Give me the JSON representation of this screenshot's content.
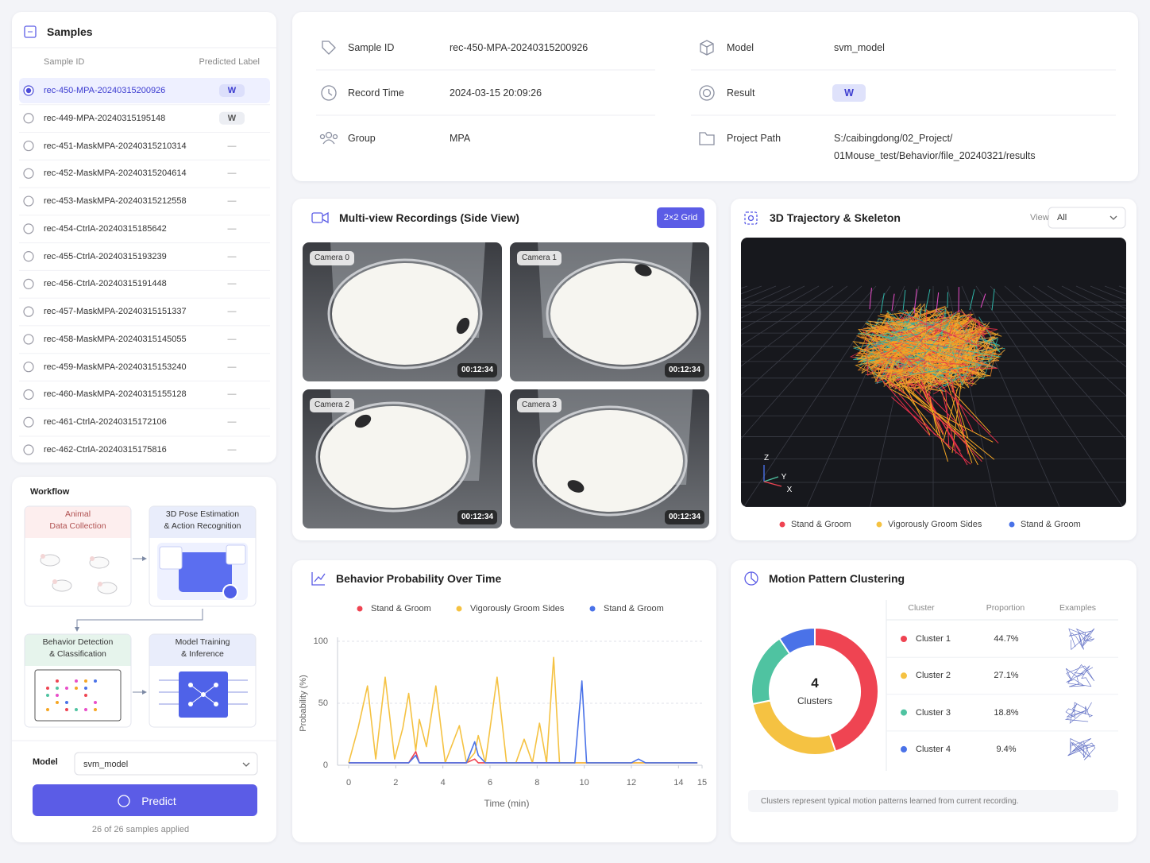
{
  "samples": {
    "title": "Samples",
    "columns": [
      "Sample ID",
      "Predicted Label"
    ],
    "rows": [
      {
        "id": "rec-450-MPA-20240315200926",
        "label": "W"
      },
      {
        "id": "rec-449-MPA-20240315195148",
        "label": "W"
      },
      {
        "id": "rec-451-MaskMPA-20240315210314",
        "label": "—"
      },
      {
        "id": "rec-452-MaskMPA-20240315204614",
        "label": "—"
      },
      {
        "id": "rec-453-MaskMPA-20240315212558",
        "label": "—"
      },
      {
        "id": "rec-454-CtrlA-20240315185642",
        "label": "—"
      },
      {
        "id": "rec-455-CtrlA-20240315193239",
        "label": "—"
      },
      {
        "id": "rec-456-CtrlA-20240315191448",
        "label": "—"
      },
      {
        "id": "rec-457-MaskMPA-20240315151337",
        "label": "—"
      },
      {
        "id": "rec-458-MaskMPA-20240315145055",
        "label": "—"
      },
      {
        "id": "rec-459-MaskMPA-20240315153240",
        "label": "—"
      },
      {
        "id": "rec-460-MaskMPA-20240315155128",
        "label": "—"
      },
      {
        "id": "rec-461-CtrlA-20240315172106",
        "label": "—"
      },
      {
        "id": "rec-462-CtrlA-20240315175816",
        "label": "—"
      }
    ]
  },
  "workflow": {
    "title": "Workflow",
    "steps": [
      "Animal\nData Collection",
      "3D Pose Estimation\n& Action Recognition",
      "Behavior Detection\n& Classification",
      "Model Training\n& Inference"
    ],
    "model_label": "Model",
    "model": "svm_model",
    "button": "Predict",
    "status": "26 of 26 samples applied"
  },
  "sample_info": {
    "fields": [
      {
        "label": "Sample ID",
        "value": "rec-450-MPA-20240315200926"
      },
      {
        "label": "Record Time",
        "value": "2024-03-15 20:09:26"
      },
      {
        "label": "Group",
        "value": "MPA"
      },
      {
        "label": "Model",
        "value": "svm_model"
      },
      {
        "label": "Result",
        "value": "W",
        "badge": true
      },
      {
        "label": "Project Path",
        "value": "S:/caibingdong/02_Project/\n01Mouse_test/Behavior/file_20240321/results"
      }
    ]
  },
  "recordings": {
    "title": "Multi-view Recordings (Side View)",
    "layout_button": "2×2 Grid",
    "cameras": [
      {
        "name": "Camera 0",
        "time": "00:12:34"
      },
      {
        "name": "Camera 1",
        "time": "00:12:34"
      },
      {
        "name": "Camera 2",
        "time": "00:12:34"
      },
      {
        "name": "Camera 3",
        "time": "00:12:34"
      }
    ]
  },
  "trajectory": {
    "title": "3D Trajectory & Skeleton",
    "view_label": "View",
    "view": "All",
    "axes": [
      "Z",
      "Y",
      "X"
    ],
    "legend": [
      {
        "name": "Stand & Groom",
        "color": "#ef4452"
      },
      {
        "name": "Vigorously Groom Sides",
        "color": "#f5c242"
      },
      {
        "name": "Stand & Groom",
        "color": "#4a72e8"
      }
    ]
  },
  "chart_data": [
    {
      "type": "line",
      "title": "Behavior Probability Over Time",
      "x_label": "Time (min)",
      "y_label": "Probability (%)",
      "x": [
        0,
        0.4,
        0.8,
        1.15,
        1.55,
        1.95,
        2.3,
        2.55,
        2.85,
        3.0,
        3.3,
        3.7,
        4.1,
        4.7,
        5.0,
        5.35,
        5.5,
        5.8,
        6.3,
        6.7,
        7.1,
        7.45,
        7.8,
        8.1,
        8.4,
        8.7,
        8.95,
        9.3,
        9.6,
        9.9,
        10.1,
        10.5,
        11,
        11.5,
        12,
        12.3,
        12.6,
        13,
        13.5,
        14,
        14.5,
        14.8
      ],
      "series": [
        {
          "name": "Stand & Groom",
          "color": "#ef4452",
          "values": [
            2,
            2,
            2,
            2,
            2,
            2,
            2,
            2,
            11,
            2,
            2,
            2,
            2,
            2,
            2,
            5,
            2,
            2,
            2,
            2,
            2,
            2,
            2,
            2,
            2,
            2,
            2,
            2,
            2,
            2,
            2,
            2,
            2,
            2,
            2,
            2,
            2,
            2,
            2,
            2,
            2,
            2
          ]
        },
        {
          "name": "Vigorously Groom Sides",
          "color": "#f5c242",
          "values": [
            2,
            30,
            64,
            5,
            71,
            5,
            30,
            58,
            12,
            37,
            15,
            64,
            2,
            32,
            2,
            10,
            24,
            2,
            71,
            2,
            2,
            21,
            2,
            34,
            2,
            87,
            2,
            2,
            2,
            2,
            2,
            2,
            2,
            2,
            2,
            2,
            2,
            2,
            2,
            2,
            2,
            2
          ]
        },
        {
          "name": "Stand & Groom",
          "color": "#4a72e8",
          "values": [
            2,
            2,
            2,
            2,
            2,
            2,
            2,
            2,
            8,
            2,
            2,
            2,
            2,
            2,
            2,
            19,
            8,
            2,
            2,
            2,
            2,
            2,
            2,
            2,
            2,
            2,
            2,
            2,
            2,
            68,
            2,
            2,
            2,
            2,
            2,
            5,
            2,
            2,
            2,
            2,
            2,
            2
          ]
        }
      ],
      "xlim": [
        0,
        15
      ],
      "ylim": [
        0,
        100
      ],
      "xticks": [
        0,
        2,
        4,
        6,
        8,
        10,
        12,
        14,
        15
      ],
      "yticks": [
        0,
        50,
        100
      ],
      "grid": true
    },
    {
      "type": "pie",
      "donut": true,
      "title": "Motion Pattern Clustering",
      "categories": [
        "Cluster 1",
        "Cluster 2",
        "Cluster 3",
        "Cluster 4"
      ],
      "values": [
        44.7,
        27.1,
        18.8,
        9.4
      ],
      "value_labels": [
        "44.7%",
        "27.1%",
        "18.8%",
        "9.4%"
      ],
      "colors": [
        "#ef4452",
        "#f5c242",
        "#4fc3a1",
        "#4a72e8"
      ],
      "center_value": 4,
      "center_label": "Clusters",
      "table_columns": [
        "Cluster",
        "Proportion",
        "Examples"
      ],
      "note": "Clusters represent typical motion patterns learned from current recording."
    }
  ]
}
